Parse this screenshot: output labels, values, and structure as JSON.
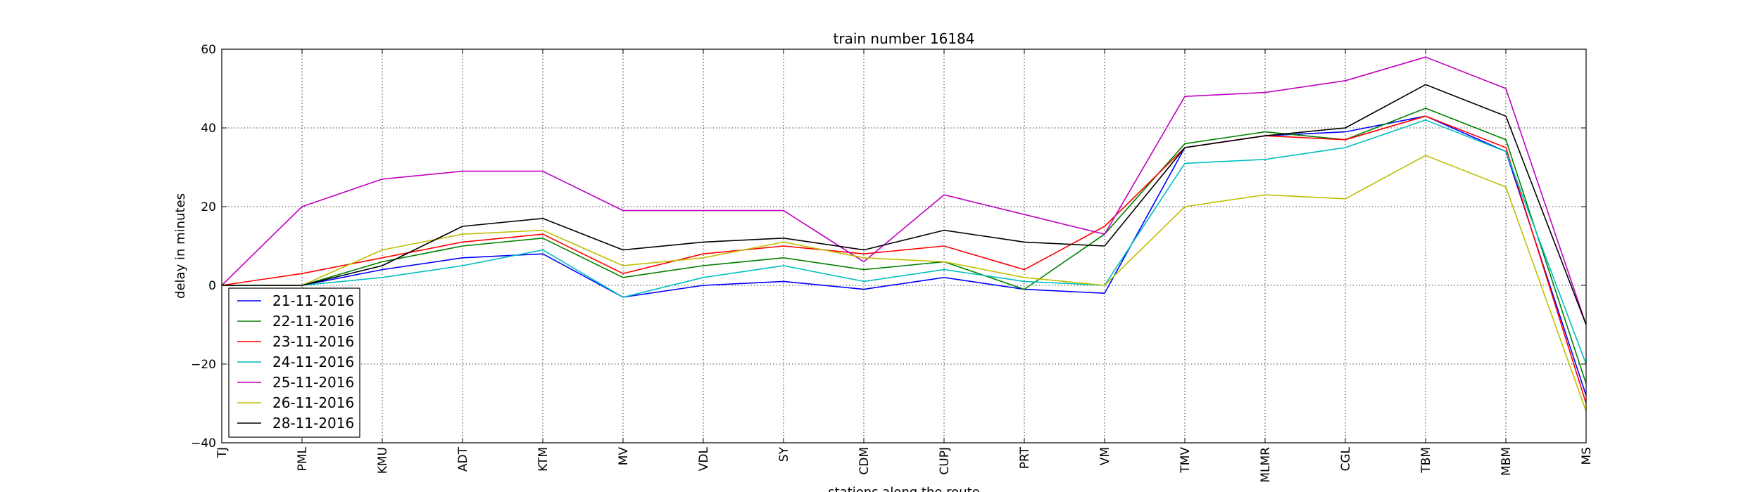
{
  "chart_data": {
    "type": "line",
    "title": "train number 16184",
    "xlabel": "stations along the route",
    "ylabel": "delay in minutes",
    "ylim": [
      -40,
      60
    ],
    "yticks": [
      60,
      40,
      20,
      0,
      -20,
      -40
    ],
    "ytick_labels": [
      "60",
      "40",
      "20",
      "0",
      "−20",
      "−40"
    ],
    "grid": true,
    "legend_position": "lower-left",
    "categories": [
      "TJ",
      "PML",
      "KMU",
      "ADT",
      "KTM",
      "MV",
      "VDL",
      "SY",
      "CDM",
      "CUPJ",
      "PRT",
      "VM",
      "TMV",
      "MLMR",
      "CGL",
      "TBM",
      "MBM",
      "MS"
    ],
    "series": [
      {
        "name": "21-11-2016",
        "color": "#0000ff",
        "values": [
          0,
          0,
          4,
          7,
          8,
          -3,
          0,
          1,
          -1,
          2,
          -1,
          -2,
          35,
          38,
          39,
          43,
          34,
          -28
        ]
      },
      {
        "name": "22-11-2016",
        "color": "#008000",
        "values": [
          0,
          0,
          6,
          10,
          12,
          2,
          5,
          7,
          4,
          6,
          -1,
          13,
          36,
          39,
          37,
          45,
          37,
          -25
        ]
      },
      {
        "name": "23-11-2016",
        "color": "#ff0000",
        "values": [
          0,
          3,
          7,
          11,
          13,
          3,
          8,
          10,
          8,
          10,
          4,
          15,
          35,
          38,
          37,
          43,
          35,
          -30
        ]
      },
      {
        "name": "24-11-2016",
        "color": "#00bfbf",
        "values": [
          0,
          0,
          2,
          5,
          9,
          -3,
          2,
          5,
          1,
          4,
          1,
          0,
          31,
          32,
          35,
          42,
          34,
          -20
        ]
      },
      {
        "name": "25-11-2016",
        "color": "#bf00bf",
        "values": [
          0,
          20,
          27,
          29,
          29,
          19,
          19,
          19,
          6,
          23,
          18,
          13,
          48,
          49,
          52,
          58,
          50,
          -10
        ]
      },
      {
        "name": "26-11-2016",
        "color": "#bfbf00",
        "values": [
          0,
          0,
          9,
          13,
          14,
          5,
          7,
          11,
          7,
          6,
          2,
          0,
          20,
          23,
          22,
          33,
          25,
          -32
        ]
      },
      {
        "name": "28-11-2016",
        "color": "#000000",
        "values": [
          0,
          0,
          5,
          15,
          17,
          9,
          11,
          12,
          9,
          14,
          11,
          10,
          35,
          38,
          40,
          51,
          43,
          -10
        ]
      }
    ]
  }
}
